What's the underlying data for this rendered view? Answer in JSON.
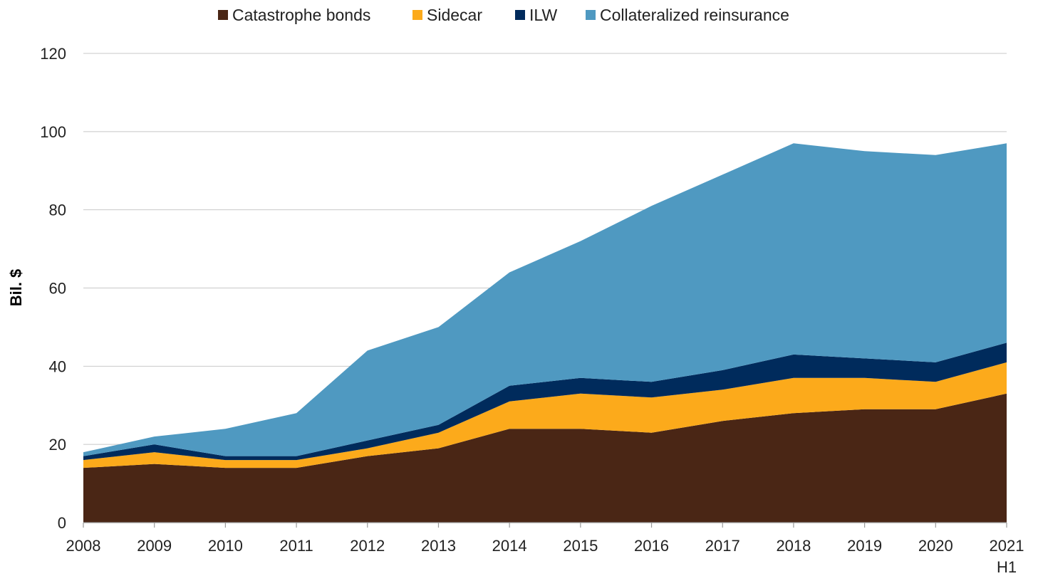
{
  "chart_data": {
    "type": "area",
    "stacked": true,
    "title": "",
    "xlabel": "",
    "ylabel": "Bil. $",
    "ylim": [
      0,
      120
    ],
    "yticks": [
      "0",
      "20",
      "40",
      "60",
      "80",
      "100",
      "120"
    ],
    "categories": [
      "2008",
      "2009",
      "2010",
      "2011",
      "2012",
      "2013",
      "2014",
      "2015",
      "2016",
      "2017",
      "2018",
      "2019",
      "2020",
      "2021"
    ],
    "category_sublabels": [
      "",
      "",
      "",
      "",
      "",
      "",
      "",
      "",
      "",
      "",
      "",
      "",
      "",
      "H1"
    ],
    "grid": true,
    "legend_position": "top",
    "series": [
      {
        "name": "Catastrophe bonds",
        "color": "#4a2615",
        "values": [
          14,
          15,
          14,
          14,
          17,
          19,
          24,
          24,
          23,
          26,
          28,
          29,
          29,
          33
        ]
      },
      {
        "name": "Sidecar",
        "color": "#fcaa1b",
        "values": [
          2,
          3,
          2,
          2,
          2,
          4,
          7,
          9,
          9,
          8,
          9,
          8,
          7,
          8
        ]
      },
      {
        "name": "ILW",
        "color": "#002b5c",
        "values": [
          1,
          2,
          1,
          1,
          2,
          2,
          4,
          4,
          4,
          5,
          6,
          5,
          5,
          5
        ]
      },
      {
        "name": "Collateralized reinsurance",
        "color": "#4f99c1",
        "values": [
          1,
          2,
          7,
          11,
          23,
          25,
          29,
          35,
          45,
          50,
          54,
          53,
          53,
          51
        ]
      }
    ]
  }
}
